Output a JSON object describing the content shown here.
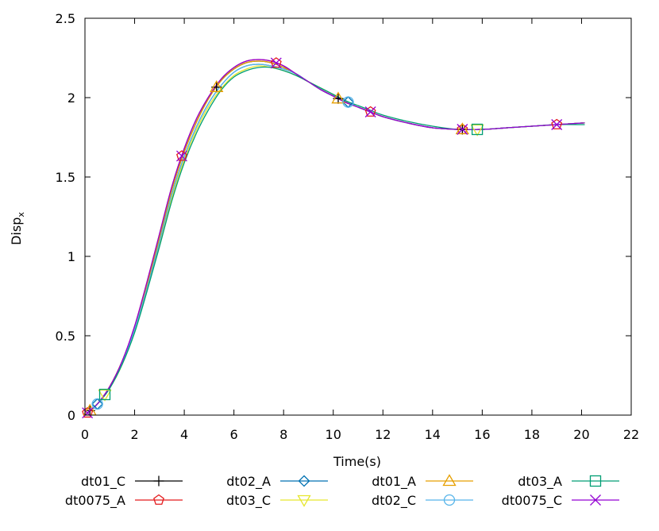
{
  "chart_data": {
    "type": "line",
    "title": "",
    "xlabel": "Time(s)",
    "ylabel": "Disp",
    "ylabel_subscript": "x",
    "xlim": [
      0,
      22
    ],
    "ylim": [
      0,
      2.5
    ],
    "xticks": [
      0,
      2,
      4,
      6,
      8,
      10,
      12,
      14,
      16,
      18,
      20,
      22
    ],
    "yticks": [
      0,
      0.5,
      1,
      1.5,
      2,
      2.5
    ],
    "xtick_labels": [
      "0",
      "2",
      "4",
      "6",
      "8",
      "10",
      "12",
      "14",
      "16",
      "18",
      "20",
      "22"
    ],
    "ytick_labels": [
      "0",
      "0.5",
      "1",
      "1.5",
      "2",
      "2.5"
    ],
    "grid": false,
    "legend_position": "bottom",
    "series": [
      {
        "name": "dt01_C",
        "color": "#000000",
        "marker": "plus",
        "x": [
          0,
          0.5,
          1,
          1.5,
          2,
          2.5,
          3,
          3.5,
          4,
          4.5,
          5,
          5.5,
          6,
          6.5,
          7,
          7.5,
          8,
          8.5,
          9,
          9.5,
          10,
          10.5,
          11,
          11.5,
          12,
          13,
          14,
          15,
          16,
          17,
          18,
          19,
          20,
          20.1
        ],
        "y": [
          0,
          0.07,
          0.18,
          0.34,
          0.55,
          0.82,
          1.12,
          1.42,
          1.66,
          1.85,
          2.0,
          2.11,
          2.18,
          2.22,
          2.23,
          2.22,
          2.19,
          2.15,
          2.1,
          2.05,
          2.01,
          1.97,
          1.94,
          1.91,
          1.88,
          1.84,
          1.81,
          1.8,
          1.8,
          1.81,
          1.82,
          1.83,
          1.84,
          1.84
        ],
        "marker_x": [
          0.2,
          5.3,
          10.2,
          15.2
        ]
      },
      {
        "name": "dt0075_A",
        "color": "#e41a1c",
        "marker": "pentagon",
        "x": [
          0,
          0.5,
          1,
          1.5,
          2,
          2.5,
          3,
          3.5,
          4,
          4.5,
          5,
          5.5,
          6,
          6.5,
          7,
          7.5,
          8,
          8.5,
          9,
          9.5,
          10,
          10.5,
          11,
          11.5,
          12,
          13,
          14,
          15,
          16,
          17,
          18,
          19,
          20,
          20.1
        ],
        "y": [
          0,
          0.07,
          0.18,
          0.34,
          0.56,
          0.84,
          1.14,
          1.44,
          1.68,
          1.87,
          2.01,
          2.12,
          2.19,
          2.23,
          2.24,
          2.23,
          2.2,
          2.15,
          2.1,
          2.05,
          2.01,
          1.97,
          1.94,
          1.91,
          1.88,
          1.84,
          1.81,
          1.8,
          1.8,
          1.81,
          1.82,
          1.83,
          1.84,
          1.84
        ],
        "marker_x": [
          0.1,
          3.9,
          7.7,
          11.5,
          15.2,
          19.0
        ]
      },
      {
        "name": "dt02_A",
        "color": "#0072b2",
        "marker": "diamond",
        "x": [
          0,
          0.5,
          1,
          1.5,
          2,
          2.5,
          3,
          3.5,
          4,
          4.5,
          5,
          5.5,
          6,
          6.5,
          7,
          7.5,
          8,
          8.5,
          9,
          9.5,
          10,
          10.5,
          11,
          11.5,
          12,
          13,
          14,
          15,
          16,
          17,
          18,
          19,
          20,
          20.1
        ],
        "y": [
          0,
          0.07,
          0.17,
          0.33,
          0.54,
          0.8,
          1.09,
          1.39,
          1.63,
          1.82,
          1.97,
          2.08,
          2.16,
          2.2,
          2.21,
          2.2,
          2.18,
          2.15,
          2.1,
          2.05,
          2.01,
          1.98,
          1.94,
          1.91,
          1.88,
          1.84,
          1.81,
          1.8,
          1.8,
          1.81,
          1.82,
          1.83,
          1.84,
          1.84
        ],
        "marker_x": [
          0.5,
          10.6
        ]
      },
      {
        "name": "dt03_C",
        "color": "#e6e62e",
        "marker": "triangle-down",
        "x": [
          0,
          0.5,
          1,
          1.5,
          2,
          2.5,
          3,
          3.5,
          4,
          4.5,
          5,
          5.5,
          6,
          6.5,
          7,
          7.5,
          8,
          8.5,
          9,
          9.5,
          10,
          10.5,
          11,
          11.5,
          12,
          13,
          14,
          15,
          16,
          17,
          18,
          19,
          20,
          20.1
        ],
        "y": [
          0,
          0.07,
          0.17,
          0.32,
          0.53,
          0.79,
          1.07,
          1.37,
          1.61,
          1.8,
          1.95,
          2.06,
          2.14,
          2.18,
          2.2,
          2.19,
          2.17,
          2.14,
          2.1,
          2.06,
          2.02,
          1.98,
          1.94,
          1.91,
          1.88,
          1.84,
          1.81,
          1.8,
          1.8,
          1.81,
          1.82,
          1.83,
          1.84,
          1.84
        ],
        "marker_x": [
          0.8,
          15.8
        ]
      },
      {
        "name": "dt01_A",
        "color": "#e69f00",
        "marker": "triangle",
        "x": [
          0,
          0.5,
          1,
          1.5,
          2,
          2.5,
          3,
          3.5,
          4,
          4.5,
          5,
          5.5,
          6,
          6.5,
          7,
          7.5,
          8,
          8.5,
          9,
          9.5,
          10,
          10.5,
          11,
          11.5,
          12,
          13,
          14,
          15,
          16,
          17,
          18,
          19,
          20,
          20.1
        ],
        "y": [
          0,
          0.07,
          0.18,
          0.34,
          0.55,
          0.82,
          1.12,
          1.42,
          1.66,
          1.85,
          2.0,
          2.11,
          2.18,
          2.22,
          2.23,
          2.22,
          2.19,
          2.15,
          2.1,
          2.05,
          2.01,
          1.97,
          1.94,
          1.91,
          1.88,
          1.84,
          1.81,
          1.8,
          1.8,
          1.81,
          1.82,
          1.83,
          1.84,
          1.84
        ],
        "marker_x": [
          0.2,
          5.3,
          10.2,
          15.2
        ]
      },
      {
        "name": "dt02_C",
        "color": "#56b4e9",
        "marker": "circle",
        "x": [
          0,
          0.5,
          1,
          1.5,
          2,
          2.5,
          3,
          3.5,
          4,
          4.5,
          5,
          5.5,
          6,
          6.5,
          7,
          7.5,
          8,
          8.5,
          9,
          9.5,
          10,
          10.5,
          11,
          11.5,
          12,
          13,
          14,
          15,
          16,
          17,
          18,
          19,
          20,
          20.1
        ],
        "y": [
          0,
          0.07,
          0.17,
          0.33,
          0.54,
          0.8,
          1.09,
          1.39,
          1.63,
          1.82,
          1.97,
          2.08,
          2.16,
          2.2,
          2.21,
          2.2,
          2.18,
          2.15,
          2.1,
          2.05,
          2.01,
          1.98,
          1.94,
          1.91,
          1.88,
          1.84,
          1.81,
          1.8,
          1.8,
          1.81,
          1.82,
          1.83,
          1.84,
          1.84
        ],
        "marker_x": [
          0.5,
          10.6
        ]
      },
      {
        "name": "dt03_A",
        "color": "#009e73",
        "marker": "square",
        "x": [
          0,
          0.5,
          1,
          1.5,
          2,
          2.5,
          3,
          3.5,
          4,
          4.5,
          5,
          5.5,
          6,
          6.5,
          7,
          7.5,
          8,
          8.5,
          9,
          9.5,
          10,
          10.5,
          11,
          11.5,
          12,
          13,
          14,
          15,
          16,
          17,
          18,
          19,
          20,
          20.1
        ],
        "y": [
          0,
          0.07,
          0.17,
          0.32,
          0.52,
          0.78,
          1.06,
          1.35,
          1.59,
          1.78,
          1.93,
          2.05,
          2.13,
          2.17,
          2.19,
          2.19,
          2.17,
          2.14,
          2.1,
          2.06,
          2.02,
          1.98,
          1.95,
          1.92,
          1.89,
          1.85,
          1.82,
          1.8,
          1.8,
          1.81,
          1.82,
          1.83,
          1.83,
          1.83
        ],
        "marker_x": [
          0.8,
          15.8
        ]
      },
      {
        "name": "dt0075_C",
        "color": "#9400d3",
        "marker": "x",
        "x": [
          0,
          0.5,
          1,
          1.5,
          2,
          2.5,
          3,
          3.5,
          4,
          4.5,
          5,
          5.5,
          6,
          6.5,
          7,
          7.5,
          8,
          8.5,
          9,
          9.5,
          10,
          10.5,
          11,
          11.5,
          12,
          13,
          14,
          15,
          16,
          17,
          18,
          19,
          20,
          20.1
        ],
        "y": [
          0,
          0.07,
          0.18,
          0.34,
          0.56,
          0.84,
          1.14,
          1.44,
          1.68,
          1.87,
          2.01,
          2.12,
          2.19,
          2.23,
          2.24,
          2.23,
          2.2,
          2.15,
          2.1,
          2.05,
          2.01,
          1.97,
          1.94,
          1.91,
          1.88,
          1.84,
          1.81,
          1.8,
          1.8,
          1.81,
          1.82,
          1.83,
          1.84,
          1.84
        ],
        "marker_x": [
          0.1,
          3.9,
          7.7,
          11.5,
          15.2,
          19.0
        ]
      }
    ]
  }
}
